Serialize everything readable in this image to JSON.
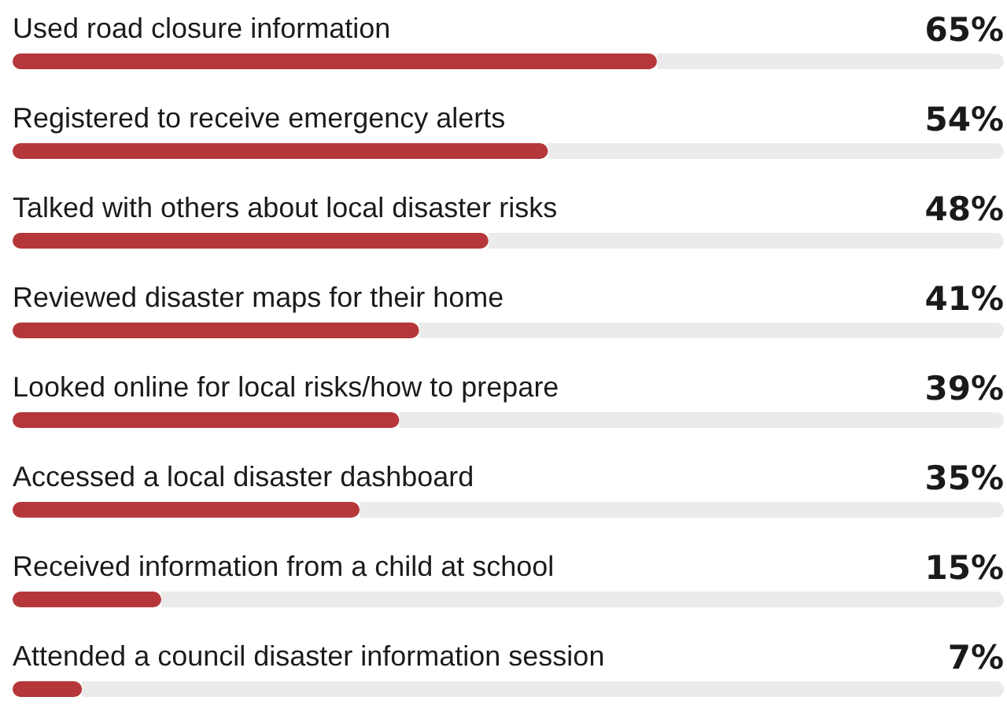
{
  "chart_data": {
    "type": "bar",
    "orientation": "horizontal",
    "categories": [
      "Used road closure information",
      "Registered to receive emergency alerts",
      "Talked with others about local disaster risks",
      "Reviewed disaster maps for their home",
      "Looked online for local risks/how to prepare",
      "Accessed a local disaster dashboard",
      "Received information from a child at school",
      "Attended a council disaster information session"
    ],
    "values": [
      65,
      54,
      48,
      41,
      39,
      35,
      15,
      7
    ],
    "value_labels": [
      "65%",
      "54%",
      "48%",
      "41%",
      "39%",
      "35%",
      "15%",
      "7%"
    ],
    "color": "#b5373a",
    "xlim": [
      0,
      100
    ]
  }
}
